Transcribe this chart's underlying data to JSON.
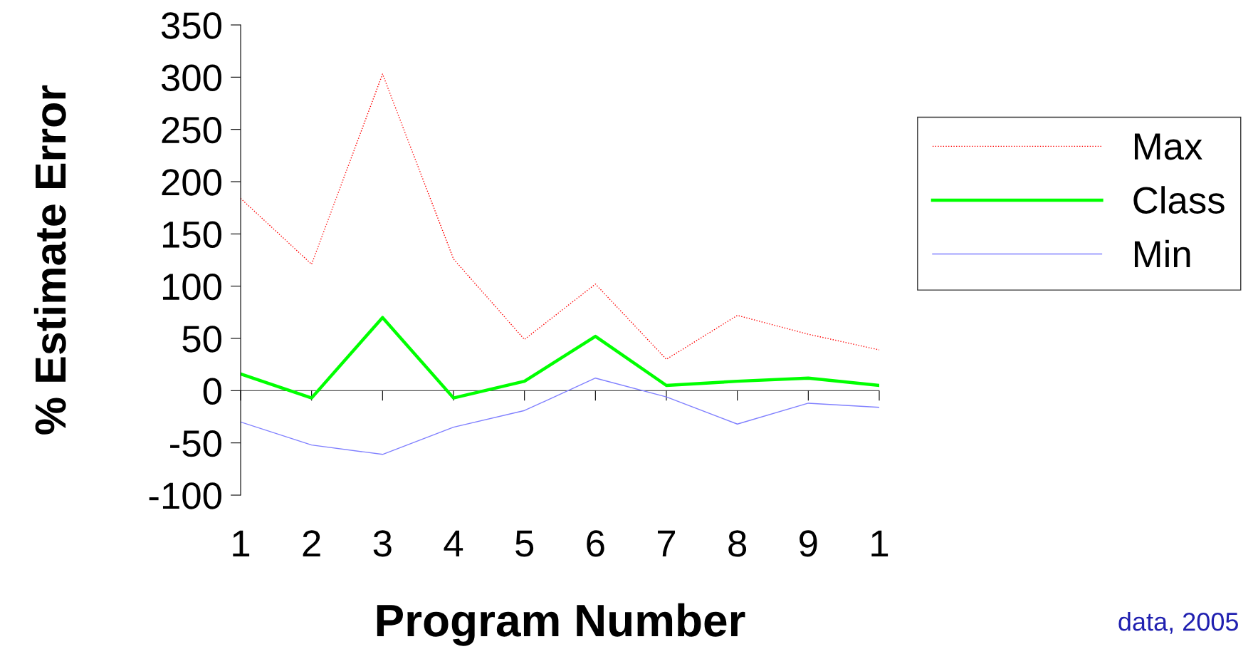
{
  "chart_data": {
    "type": "line",
    "xlabel": "Program Number",
    "ylabel": "% Estimate Error",
    "categories": [
      "1",
      "2",
      "3",
      "4",
      "5",
      "6",
      "7",
      "8",
      "9",
      "1"
    ],
    "series": [
      {
        "name": "Max",
        "color": "#ff0000",
        "line_style": "dotted",
        "values": [
          184,
          121,
          303,
          126,
          49,
          102,
          30,
          72,
          54,
          39
        ]
      },
      {
        "name": "Class",
        "color": "#00ff00",
        "line_style": "solid",
        "values": [
          16,
          -7,
          70,
          -7,
          9,
          52,
          5,
          9,
          12,
          5
        ]
      },
      {
        "name": "Min",
        "color": "#8080ff",
        "line_style": "solid",
        "values": [
          -30,
          -52,
          -61,
          -35,
          -19,
          12,
          -6,
          -32,
          -12,
          -16
        ]
      }
    ],
    "ylim": [
      -100,
      350
    ],
    "yticks": [
      -100,
      -50,
      0,
      50,
      100,
      150,
      200,
      250,
      300,
      350
    ],
    "ref_lines": [
      {
        "axis": "y",
        "value": 0,
        "color": "#555555"
      }
    ],
    "grid": false,
    "legend": "right",
    "marker": "none",
    "annotations": [
      "data, 2005"
    ]
  }
}
